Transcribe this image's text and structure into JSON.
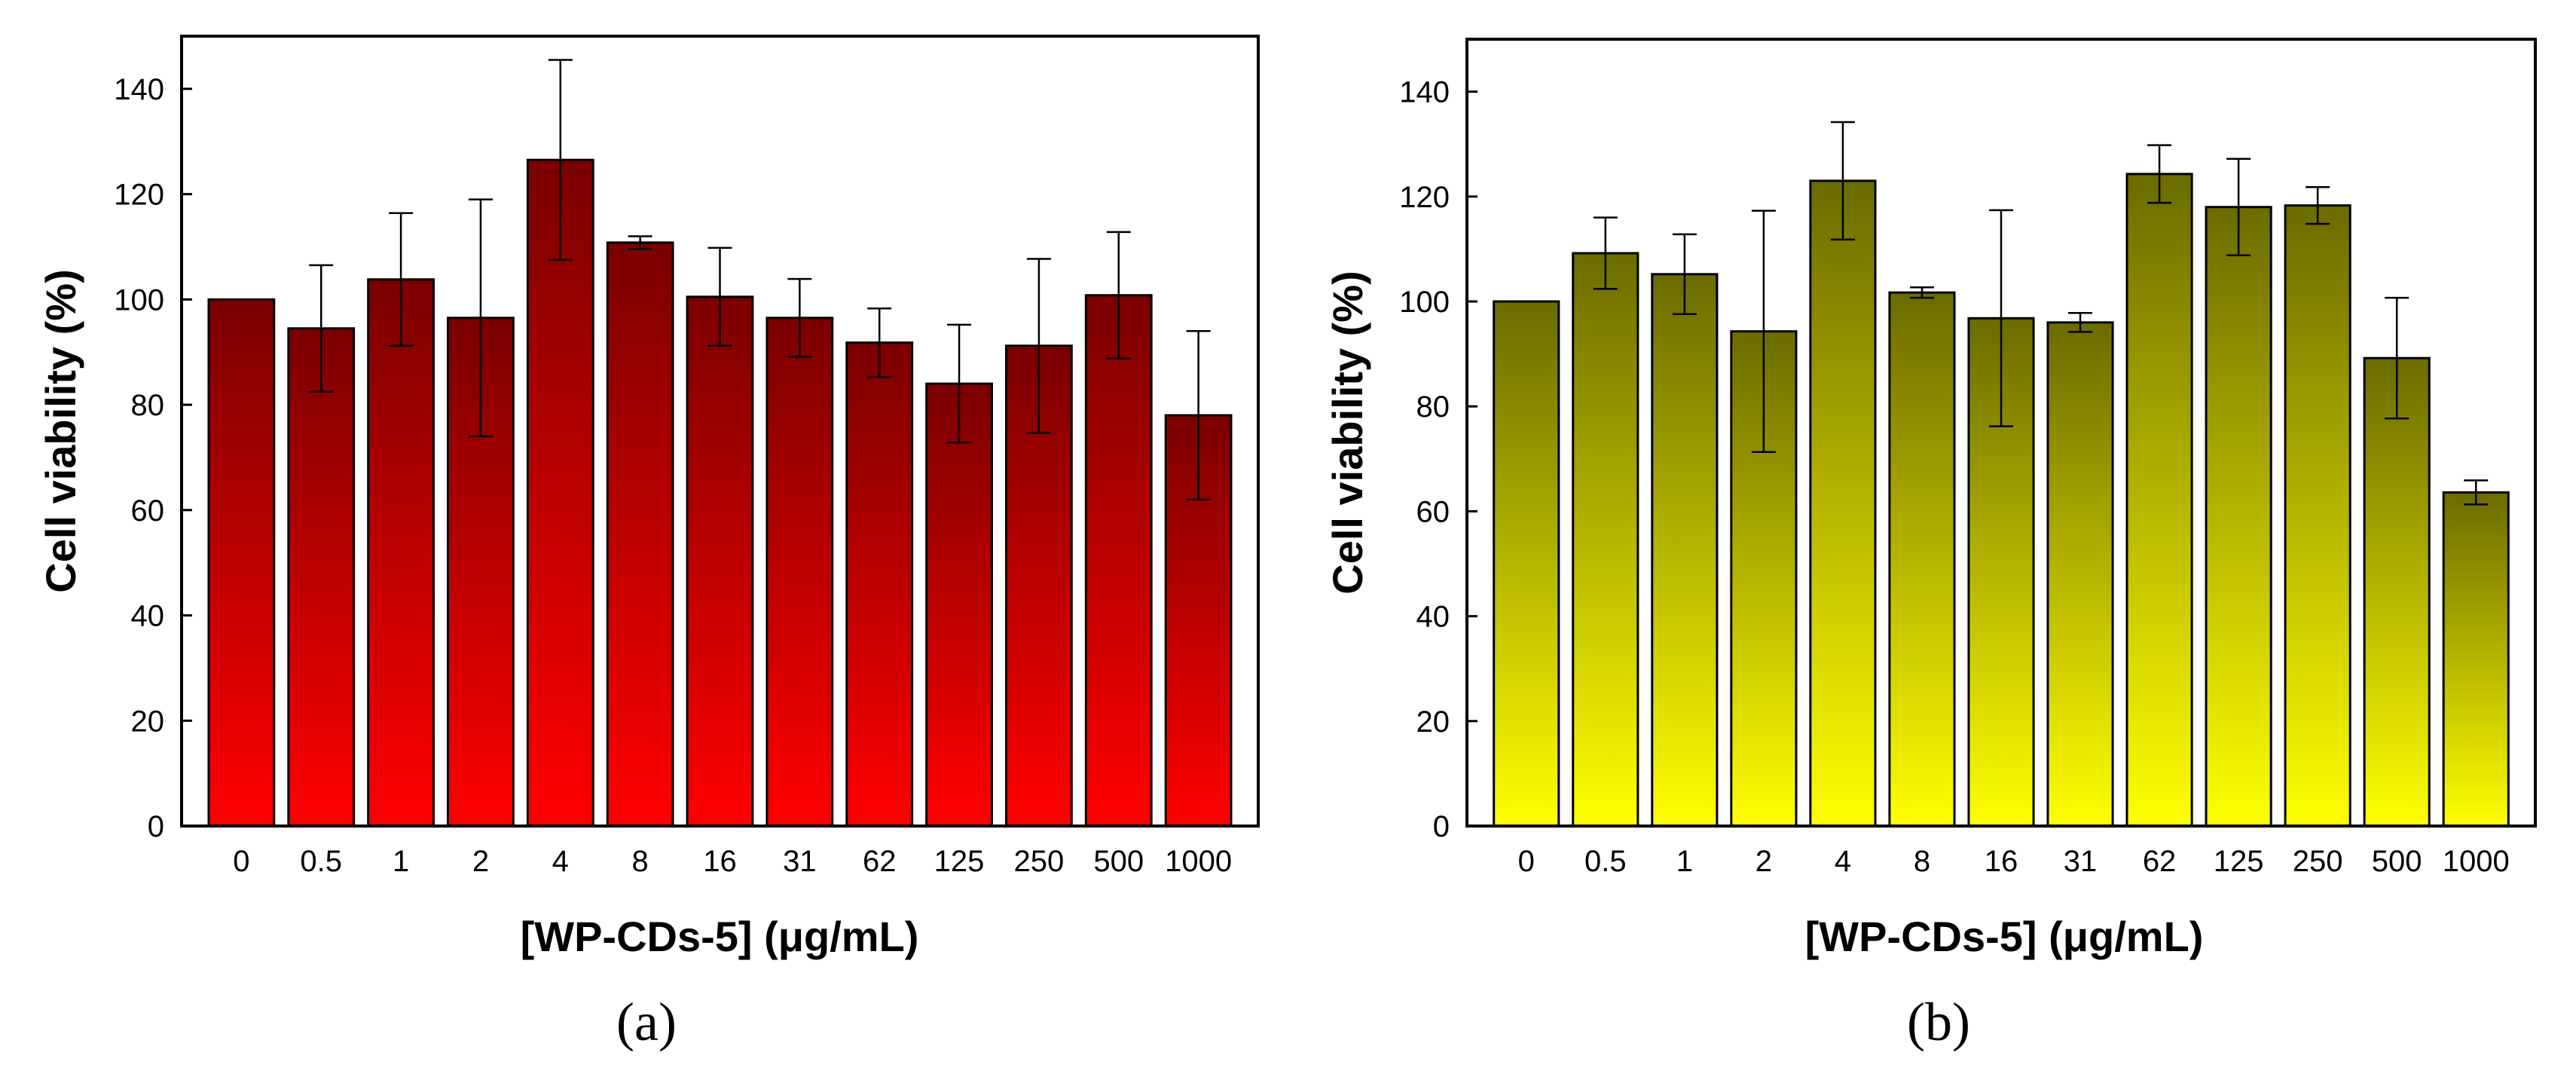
{
  "chart_data": [
    {
      "type": "bar",
      "panel_label": "(a)",
      "xlabel": "[WP-CDs-5] (μg/mL)",
      "ylabel": "Cell viability (%)",
      "categories": [
        "0",
        "0.5",
        "1",
        "2",
        "4",
        "8",
        "16",
        "31",
        "62",
        "125",
        "250",
        "500",
        "1000"
      ],
      "values": [
        100,
        94.5,
        103.8,
        96.5,
        126.5,
        110.8,
        100.5,
        96.5,
        91.8,
        84,
        91.2,
        100.8,
        78
      ],
      "errors": [
        0,
        12,
        12.6,
        22.5,
        19,
        1.2,
        9.3,
        7.4,
        6.5,
        11.2,
        16.5,
        12,
        16
      ],
      "ylim": [
        0,
        150
      ],
      "yticks": [
        0,
        20,
        40,
        60,
        80,
        100,
        120,
        140
      ],
      "bar_color_top": "#7a0000",
      "bar_color_bottom": "#ff0000"
    },
    {
      "type": "bar",
      "panel_label": "(b)",
      "xlabel": "[WP-CDs-5] (μg/mL)",
      "ylabel": "Cell viability (%)",
      "categories": [
        "0",
        "0.5",
        "1",
        "2",
        "4",
        "8",
        "16",
        "31",
        "62",
        "125",
        "250",
        "500",
        "1000"
      ],
      "values": [
        100,
        109.2,
        105.2,
        94.3,
        123,
        101.7,
        96.8,
        96,
        124.3,
        118,
        118.3,
        89.2,
        63.6
      ],
      "errors": [
        0,
        6.8,
        7.6,
        23,
        11.2,
        1,
        20.6,
        1.8,
        5.5,
        9.2,
        3.5,
        11.5,
        2.3
      ],
      "ylim": [
        0,
        150
      ],
      "yticks": [
        0,
        20,
        40,
        60,
        80,
        100,
        120,
        140
      ],
      "bar_color_top": "#6b6b00",
      "bar_color_bottom": "#ffff00"
    }
  ]
}
